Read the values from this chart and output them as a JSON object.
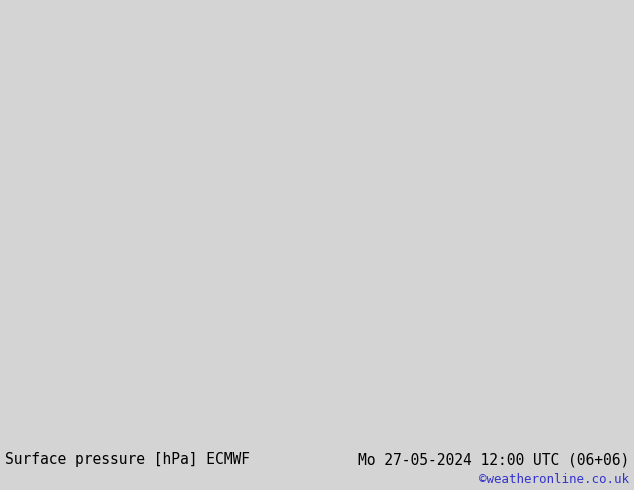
{
  "title_left": "Surface pressure [hPa] ECMWF",
  "title_right": "Mo 27-05-2024 12:00 UTC (06+06)",
  "watermark": "©weatheronline.co.uk",
  "bg_color": "#d4d4d4",
  "map_bg": "#d4d4d4",
  "land_color": "#c8e8b4",
  "ocean_color": "#d4d4d4",
  "border_color": "#888888",
  "text_color_black": "#000000",
  "text_color_blue": "#0000bb",
  "text_color_red": "#cc0000",
  "footer_bg": "#d4d4d4",
  "title_fontsize": 10.5,
  "watermark_color": "#3333cc",
  "figsize": [
    6.34,
    4.9
  ],
  "dpi": 100,
  "extent": [
    -25,
    75,
    -42,
    42
  ],
  "isobar_red_color": "#cc0000",
  "isobar_blue_color": "#0000bb",
  "isobar_black_color": "#000000"
}
